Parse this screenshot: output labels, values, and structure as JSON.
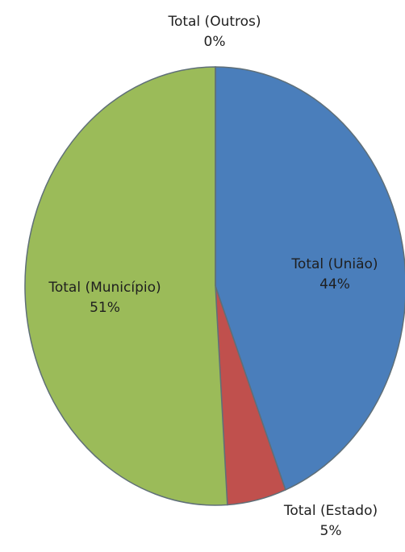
{
  "chart_data": {
    "type": "pie",
    "title": "",
    "slices": [
      {
        "name": "Total (União)",
        "label": "Total (União)",
        "percent_label": "44%",
        "value": 44,
        "color": "#4a7ebb"
      },
      {
        "name": "Total (Estado)",
        "label": "Total (Estado)",
        "percent_label": "5%",
        "value": 5,
        "color": "#c0504d"
      },
      {
        "name": "Total (Município)",
        "label": "Total (Município)",
        "percent_label": "51%",
        "value": 51,
        "color": "#9bbb59"
      },
      {
        "name": "Total (Outros)",
        "label": "Total (Outros)",
        "percent_label": "0%",
        "value": 0,
        "color": "#8064a2"
      }
    ],
    "legend": "none",
    "start_angle": "top",
    "direction": "clockwise"
  }
}
